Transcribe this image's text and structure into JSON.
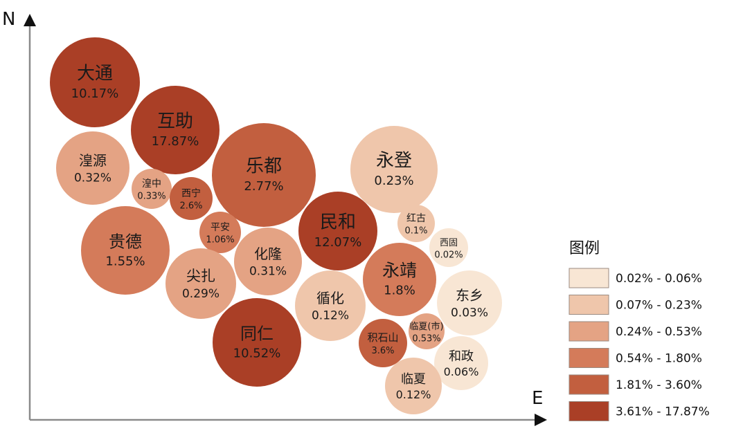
{
  "chart_data": {
    "type": "bubble",
    "axes": {
      "x_label": "E",
      "y_label": "N"
    },
    "legend": {
      "title": "图例",
      "placement": "right",
      "items": [
        {
          "label": "0.02% - 0.06%",
          "color": "#f8e6d4"
        },
        {
          "label": "0.07% - 0.23%",
          "color": "#efc6ab"
        },
        {
          "label": "0.24% - 0.53%",
          "color": "#e4a384"
        },
        {
          "label": "0.54% - 1.80%",
          "color": "#d47b5a"
        },
        {
          "label": "1.81% - 3.60%",
          "color": "#c25f3f"
        },
        {
          "label": "3.61% - 17.87%",
          "color": "#aa3f26"
        }
      ]
    },
    "bubbles": [
      {
        "name": "大通",
        "value": "10.17%",
        "percent": 10.17
      },
      {
        "name": "互助",
        "value": "17.87%",
        "percent": 17.87
      },
      {
        "name": "湟源",
        "value": "0.32%",
        "percent": 0.32
      },
      {
        "name": "湟中",
        "value": "0.33%",
        "percent": 0.33
      },
      {
        "name": "西宁",
        "value": "2.6%",
        "percent": 2.6
      },
      {
        "name": "乐都",
        "value": "2.77%",
        "percent": 2.77
      },
      {
        "name": "永登",
        "value": "0.23%",
        "percent": 0.23
      },
      {
        "name": "平安",
        "value": "1.06%",
        "percent": 1.06
      },
      {
        "name": "贵德",
        "value": "1.55%",
        "percent": 1.55
      },
      {
        "name": "化隆",
        "value": "0.31%",
        "percent": 0.31
      },
      {
        "name": "民和",
        "value": "12.07%",
        "percent": 12.07
      },
      {
        "name": "红古",
        "value": "0.1%",
        "percent": 0.1
      },
      {
        "name": "西固",
        "value": "0.02%",
        "percent": 0.02
      },
      {
        "name": "尖扎",
        "value": "0.29%",
        "percent": 0.29
      },
      {
        "name": "永靖",
        "value": "1.8%",
        "percent": 1.8
      },
      {
        "name": "东乡",
        "value": "0.03%",
        "percent": 0.03
      },
      {
        "name": "循化",
        "value": "0.12%",
        "percent": 0.12
      },
      {
        "name": "同仁",
        "value": "10.52%",
        "percent": 10.52
      },
      {
        "name": "临夏(市)",
        "value": "0.53%",
        "percent": 0.53
      },
      {
        "name": "积石山",
        "value": "3.6%",
        "percent": 3.6
      },
      {
        "name": "和政",
        "value": "0.06%",
        "percent": 0.06
      },
      {
        "name": "临夏",
        "value": "0.12%",
        "percent": 0.12
      }
    ]
  }
}
